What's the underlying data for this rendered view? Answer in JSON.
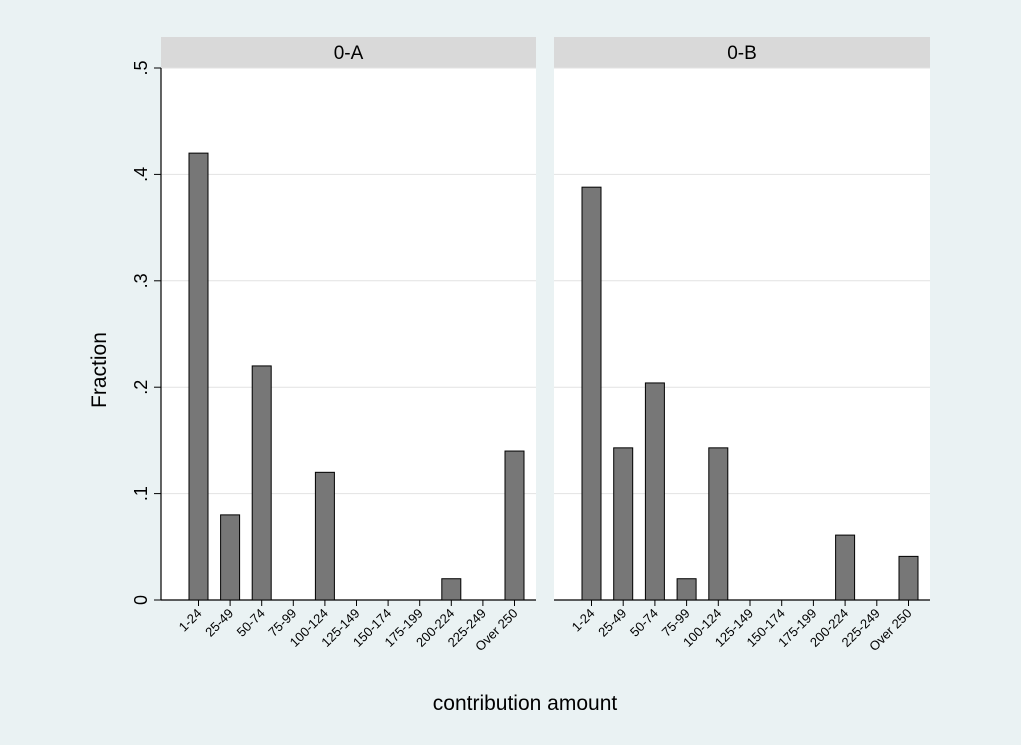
{
  "chart_data": {
    "type": "bar",
    "ylabel": "Fraction",
    "xlabel": "contribution amount",
    "ylim": [
      0,
      0.5
    ],
    "yticks": [
      0,
      0.1,
      0.2,
      0.3,
      0.4,
      0.5
    ],
    "ytick_labels": [
      "0",
      ".1",
      ".2",
      ".3",
      ".4",
      ".5"
    ],
    "grid": true,
    "categories": [
      "1-24",
      "25-49",
      "50-74",
      "75-99",
      "100-124",
      "125-149",
      "150-174",
      "175-199",
      "200-224",
      "225-249",
      "Over 250"
    ],
    "panels": [
      {
        "title": "0-A",
        "values": [
          0.42,
          0.08,
          0.22,
          0,
          0.12,
          0,
          0,
          0,
          0.02,
          0,
          0.14
        ]
      },
      {
        "title": "0-B",
        "values": [
          0.388,
          0.143,
          0.204,
          0.02,
          0.143,
          0,
          0,
          0,
          0.061,
          0,
          0.041
        ]
      }
    ],
    "colors": {
      "bar_fill": "#777777",
      "bar_stroke": "#000000",
      "panel_bg": "#ffffff",
      "panel_header": "#d9d9d9",
      "page_bg": "#eaf2f3",
      "grid": "#e2e2e2"
    }
  }
}
